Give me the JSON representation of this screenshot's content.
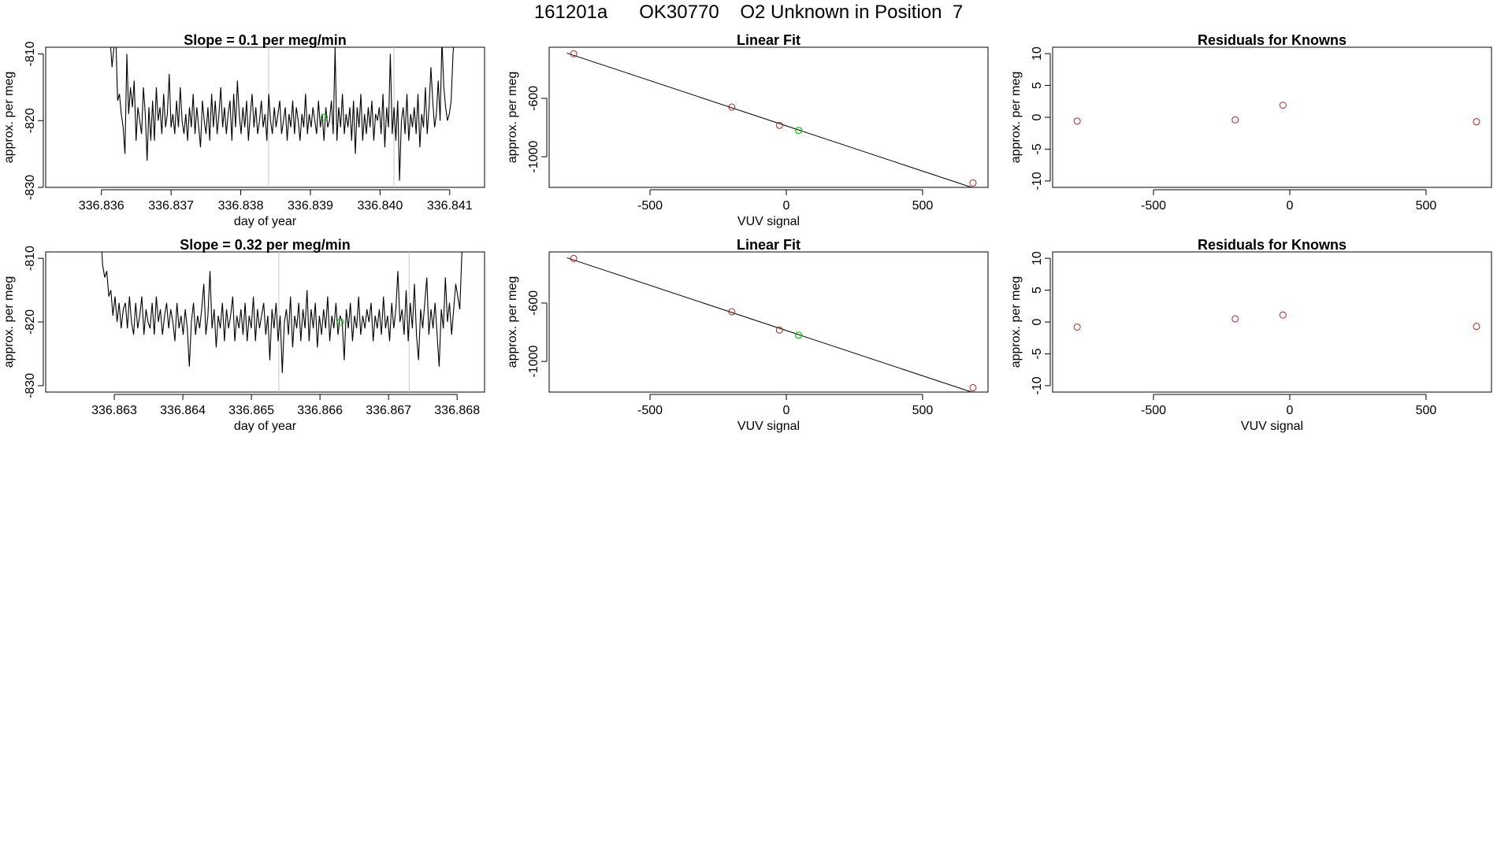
{
  "main_title": "161201a      OK30770    O2 Unknown in Position  7",
  "colors": {
    "trace": "#000000",
    "axis": "#000000",
    "marker_line": "#c8c8c8",
    "known_point": "#b22222",
    "unknown_point": "#00c800"
  },
  "chart_data": [
    {
      "type": "line",
      "title": "Slope =  0.1  per meg/min",
      "xlabel": "day of year",
      "ylabel": "approx. per meg",
      "x_ticks": [
        "336.836",
        "336.837",
        "336.838",
        "336.839",
        "336.840",
        "336.841"
      ],
      "x_tick_values": [
        336.836,
        336.837,
        336.838,
        336.839,
        336.84,
        336.841
      ],
      "y_ticks": [
        "-830",
        "-820",
        "-810"
      ],
      "y_tick_values": [
        -830,
        -820,
        -810
      ],
      "xlim": [
        336.8352,
        336.8415
      ],
      "ylim": [
        -830,
        -809
      ],
      "vlines": [
        336.8384,
        336.8402
      ],
      "highlight_point": {
        "x": 336.8392,
        "y": -819.5
      },
      "series": [
        {
          "x_start": 336.8361,
          "x_end": 336.8411,
          "values": [
            -805,
            -808,
            -812,
            -809,
            -807,
            -817,
            -816,
            -819,
            -821,
            -825,
            -810,
            -819,
            -815,
            -818,
            -814,
            -823,
            -818,
            -820,
            -822,
            -815,
            -819,
            -826,
            -818,
            -823,
            -817,
            -823,
            -815,
            -820,
            -818,
            -822,
            -816,
            -821,
            -819,
            -813,
            -821,
            -819,
            -822,
            -817,
            -821,
            -815,
            -820,
            -822,
            -819,
            -823,
            -818,
            -821,
            -816,
            -822,
            -818,
            -821,
            -824,
            -817,
            -820,
            -822,
            -818,
            -823,
            -816,
            -821,
            -817,
            -822,
            -819,
            -815,
            -821,
            -818,
            -822,
            -819,
            -817,
            -823,
            -816,
            -821,
            -814,
            -819,
            -822,
            -818,
            -821,
            -817,
            -823,
            -819,
            -816,
            -821,
            -818,
            -822,
            -820,
            -817,
            -821,
            -819,
            -823,
            -816,
            -820,
            -822,
            -818,
            -821,
            -819,
            -817,
            -822,
            -820,
            -818,
            -823,
            -819,
            -821,
            -817,
            -822,
            -818,
            -820,
            -823,
            -819,
            -821,
            -816,
            -822,
            -819,
            -821,
            -818,
            -820,
            -822,
            -817,
            -821,
            -819,
            -823,
            -818,
            -821,
            -820,
            -817,
            -822,
            -809,
            -823,
            -818,
            -821,
            -816,
            -822,
            -819,
            -821,
            -818,
            -823,
            -817,
            -825,
            -818,
            -821,
            -816,
            -823,
            -819,
            -822,
            -818,
            -821,
            -817,
            -823,
            -819,
            -820,
            -818,
            -822,
            -816,
            -824,
            -818,
            -821,
            -810,
            -822,
            -818,
            -823,
            -817,
            -829,
            -820,
            -818,
            -822,
            -816,
            -823,
            -819,
            -821,
            -818,
            -822,
            -816,
            -824,
            -819,
            -821,
            -815,
            -822,
            -818,
            -812,
            -817,
            -821,
            -819,
            -814,
            -820,
            -808,
            -815,
            -818,
            -820,
            -819,
            -817,
            -810,
            -806,
            -805
          ]
        }
      ]
    },
    {
      "type": "scatter",
      "title": "Linear Fit",
      "xlabel": "VUV signal",
      "ylabel": "approx. per meg",
      "x_ticks": [
        "-500",
        "0",
        "500"
      ],
      "x_tick_values": [
        -500,
        0,
        500
      ],
      "y_ticks": [
        "-1000",
        "-600"
      ],
      "y_tick_values": [
        -1000,
        -600
      ],
      "xlim": [
        -870,
        740
      ],
      "ylim": [
        -1210,
        -250
      ],
      "fit_line": {
        "x": [
          -805,
          680
        ],
        "y": [
          -290,
          -1210
        ]
      },
      "knowns": {
        "x": [
          -780,
          -200,
          -25,
          685
        ],
        "y": [
          -295,
          -660,
          -785,
          -1180
        ]
      },
      "unknown": {
        "x": 45,
        "y": -820
      }
    },
    {
      "type": "scatter",
      "title": "Residuals for Knowns",
      "xlabel": "",
      "ylabel": "approx. per meg",
      "x_ticks": [
        "-500",
        "0",
        "500"
      ],
      "x_tick_values": [
        -500,
        0,
        500
      ],
      "y_ticks": [
        "-10",
        "-5",
        "0",
        "5",
        "10"
      ],
      "y_tick_values": [
        -10,
        -5,
        0,
        5,
        10
      ],
      "xlim": [
        -870,
        740
      ],
      "ylim": [
        -11,
        11
      ],
      "points": {
        "x": [
          -780,
          -200,
          -25,
          685
        ],
        "y": [
          -0.6,
          -0.4,
          1.9,
          -0.7
        ]
      }
    },
    {
      "type": "line",
      "title": "Slope =  0.32  per meg/min",
      "xlabel": "day of year",
      "ylabel": "approx. per meg",
      "x_ticks": [
        "336.863",
        "336.864",
        "336.865",
        "336.866",
        "336.867",
        "336.868"
      ],
      "x_tick_values": [
        336.863,
        336.864,
        336.865,
        336.866,
        336.867,
        336.868
      ],
      "y_ticks": [
        "-830",
        "-820",
        "-810"
      ],
      "y_tick_values": [
        -830,
        -820,
        -810
      ],
      "xlim": [
        336.862,
        336.8684
      ],
      "ylim": [
        -831,
        -809
      ],
      "vlines": [
        336.8654,
        336.8673
      ],
      "highlight_point": {
        "x": 336.8663,
        "y": -820
      },
      "series": [
        {
          "x_start": 336.8628,
          "x_end": 336.8681,
          "values": [
            -805,
            -811,
            -813,
            -812,
            -816,
            -815,
            -819,
            -816,
            -820,
            -817,
            -821,
            -818,
            -817,
            -821,
            -816,
            -820,
            -822,
            -817,
            -821,
            -819,
            -816,
            -822,
            -818,
            -820,
            -821,
            -817,
            -822,
            -816,
            -820,
            -818,
            -822,
            -819,
            -817,
            -821,
            -818,
            -820,
            -823,
            -817,
            -821,
            -819,
            -822,
            -818,
            -821,
            -827,
            -820,
            -817,
            -822,
            -819,
            -821,
            -818,
            -814,
            -822,
            -819,
            -812,
            -821,
            -818,
            -824,
            -819,
            -821,
            -817,
            -823,
            -818,
            -821,
            -819,
            -816,
            -823,
            -819,
            -821,
            -818,
            -822,
            -817,
            -823,
            -819,
            -821,
            -816,
            -823,
            -818,
            -821,
            -819,
            -817,
            -822,
            -819,
            -826,
            -818,
            -821,
            -817,
            -823,
            -819,
            -828,
            -820,
            -818,
            -822,
            -816,
            -824,
            -819,
            -821,
            -817,
            -823,
            -818,
            -821,
            -815,
            -823,
            -818,
            -821,
            -817,
            -824,
            -819,
            -822,
            -818,
            -821,
            -816,
            -823,
            -819,
            -821,
            -817,
            -822,
            -819,
            -820,
            -826,
            -818,
            -821,
            -817,
            -823,
            -819,
            -821,
            -816,
            -822,
            -819,
            -821,
            -818,
            -820,
            -817,
            -823,
            -819,
            -821,
            -818,
            -822,
            -816,
            -821,
            -819,
            -823,
            -817,
            -821,
            -818,
            -812,
            -820,
            -818,
            -822,
            -815,
            -823,
            -817,
            -821,
            -814,
            -822,
            -826,
            -818,
            -821,
            -817,
            -813,
            -822,
            -818,
            -821,
            -817,
            -822,
            -827,
            -818,
            -821,
            -813,
            -820,
            -817,
            -822,
            -818,
            -814,
            -816,
            -818,
            -809,
            -805
          ]
        }
      ]
    },
    {
      "type": "scatter",
      "title": "Linear Fit",
      "xlabel": "VUV signal",
      "ylabel": "approx. per meg",
      "x_ticks": [
        "-500",
        "0",
        "500"
      ],
      "x_tick_values": [
        -500,
        0,
        500
      ],
      "y_ticks": [
        "-1000",
        "-600"
      ],
      "y_tick_values": [
        -1000,
        -600
      ],
      "xlim": [
        -870,
        740
      ],
      "ylim": [
        -1210,
        -250
      ],
      "fit_line": {
        "x": [
          -805,
          680
        ],
        "y": [
          -290,
          -1210
        ]
      },
      "knowns": {
        "x": [
          -780,
          -200,
          -25,
          685
        ],
        "y": [
          -295,
          -660,
          -785,
          -1180
        ]
      },
      "unknown": {
        "x": 45,
        "y": -820
      }
    },
    {
      "type": "scatter",
      "title": "Residuals for Knowns",
      "xlabel": "VUV signal",
      "ylabel": "approx. per meg",
      "x_ticks": [
        "-500",
        "0",
        "500"
      ],
      "x_tick_values": [
        -500,
        0,
        500
      ],
      "y_ticks": [
        "-10",
        "-5",
        "0",
        "5",
        "10"
      ],
      "y_tick_values": [
        -10,
        -5,
        0,
        5,
        10
      ],
      "xlim": [
        -870,
        740
      ],
      "ylim": [
        -11,
        11
      ],
      "points": {
        "x": [
          -780,
          -200,
          -25,
          685
        ],
        "y": [
          -0.8,
          0.5,
          1.1,
          -0.7
        ]
      }
    }
  ]
}
